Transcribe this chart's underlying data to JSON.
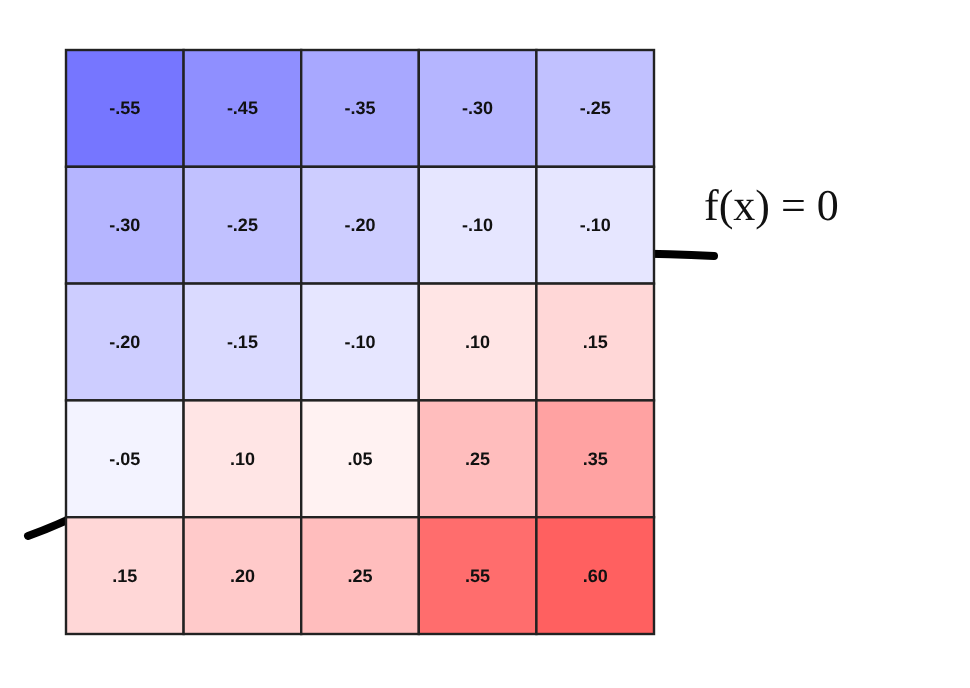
{
  "chart_data": {
    "type": "heatmap",
    "categories": [
      null,
      null,
      null,
      null,
      null
    ],
    "y_categories": [
      null,
      null,
      null,
      null,
      null
    ],
    "cells": [
      [
        -0.55,
        -0.45,
        -0.35,
        -0.3,
        -0.25
      ],
      [
        -0.3,
        -0.25,
        -0.2,
        -0.1,
        -0.1
      ],
      [
        -0.2,
        -0.15,
        -0.1,
        0.1,
        0.15
      ],
      [
        -0.05,
        0.1,
        0.05,
        0.25,
        0.35
      ],
      [
        0.15,
        0.2,
        0.25,
        0.55,
        0.6
      ]
    ],
    "cell_labels": [
      [
        "-.55",
        "-.45",
        "-.35",
        "-.30",
        "-.25"
      ],
      [
        "-.30",
        "-.25",
        "-.20",
        "-.10",
        "-.10"
      ],
      [
        "-.20",
        "-.15",
        "-.10",
        ".10",
        ".15"
      ],
      [
        "-.05",
        ".10",
        ".05",
        ".25",
        ".35"
      ],
      [
        ".15",
        ".20",
        ".25",
        ".55",
        ".60"
      ]
    ],
    "annotations": [
      "f(x) = 0"
    ]
  }
}
